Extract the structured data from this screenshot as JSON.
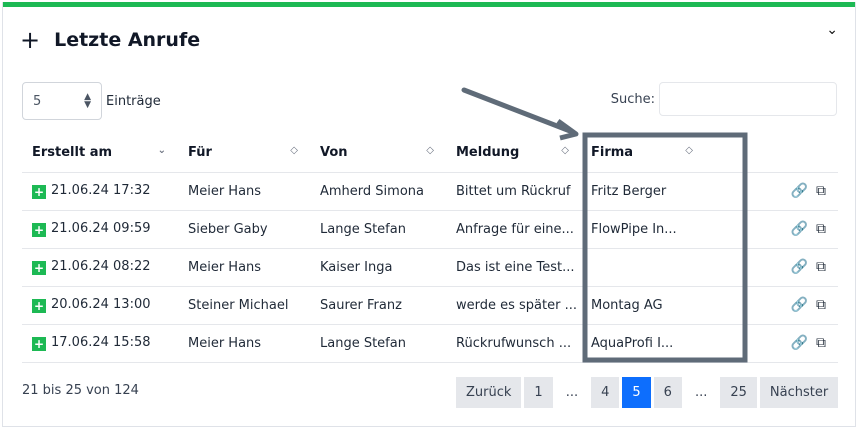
{
  "title": "Letzte Anrufe",
  "length": {
    "value": "5",
    "label": "Einträge"
  },
  "search": {
    "label": "Suche:",
    "value": ""
  },
  "columns": [
    "Erstellt am",
    "Für",
    "Von",
    "Meldung",
    "Firma"
  ],
  "rows": [
    {
      "date": "21.06.24 17:32",
      "fuer": "Meier Hans",
      "von": "Amherd Simona",
      "meldung": "Bittet um Rückruf",
      "firma": "Fritz Berger"
    },
    {
      "date": "21.06.24 09:59",
      "fuer": "Sieber Gaby",
      "von": "Lange Stefan",
      "meldung": "Anfrage für eine...",
      "firma": "FlowPipe In..."
    },
    {
      "date": "21.06.24 08:22",
      "fuer": "Meier Hans",
      "von": "Kaiser Inga",
      "meldung": "Das ist eine Test...",
      "firma": ""
    },
    {
      "date": "20.06.24 13:00",
      "fuer": "Steiner Michael",
      "von": "Saurer Franz",
      "meldung": "werde es später ...",
      "firma": "Montag AG"
    },
    {
      "date": "17.06.24 15:58",
      "fuer": "Meier Hans",
      "von": "Lange Stefan",
      "meldung": "Rückrufwunsch ...",
      "firma": "AquaProfi I..."
    }
  ],
  "info": "21 bis 25 von 124",
  "pager": {
    "prev": "Zurück",
    "next": "Nächster",
    "pages": [
      "1",
      "...",
      "4",
      "5",
      "6",
      "...",
      "25"
    ],
    "current": "5"
  },
  "colors": {
    "accent": "#1db954",
    "active": "#0d6efd",
    "annotation": "#5f6b78"
  }
}
